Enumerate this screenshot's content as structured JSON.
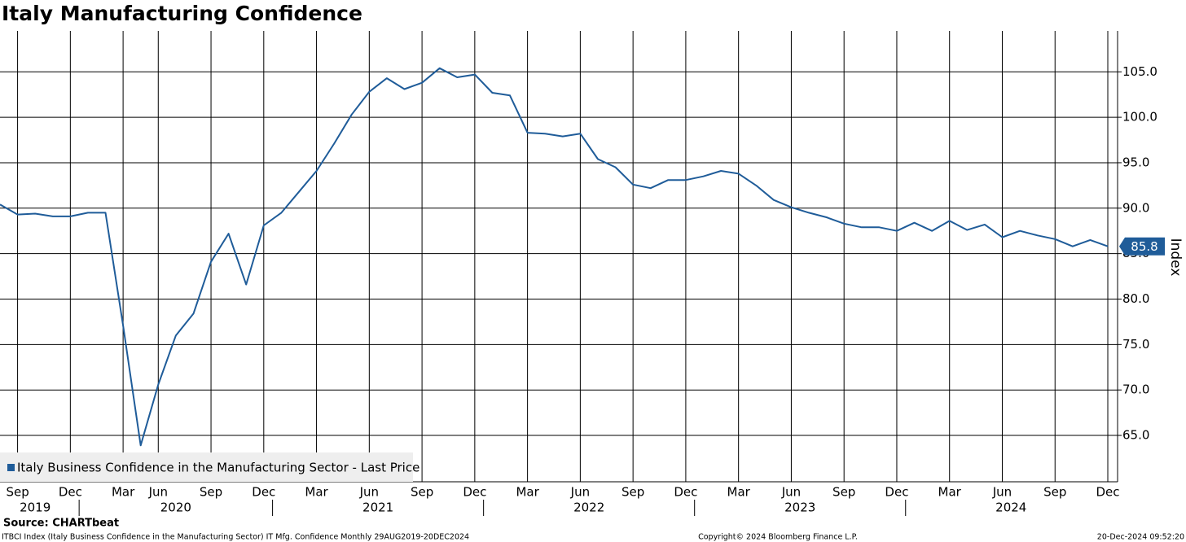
{
  "chart_data": {
    "type": "line",
    "title": "Italy Manufacturing Confidence",
    "y_label": "Index",
    "source": "Source: CHARTbeat",
    "footer_left": "ITBCI Index (Italy Business Confidence in the Manufacturing Sector) IT Mfg. Confidence  Monthly 29AUG2019-20DEC2024",
    "footer_center": "Copyright© 2024 Bloomberg Finance L.P.",
    "footer_right": "20-Dec-2024 09:52:20",
    "x": [
      "2019-08",
      "2019-09",
      "2019-10",
      "2019-11",
      "2019-12",
      "2020-01",
      "2020-02",
      "2020-03",
      "2020-05",
      "2020-06",
      "2020-07",
      "2020-08",
      "2020-09",
      "2020-10",
      "2020-11",
      "2020-12",
      "2021-01",
      "2021-02",
      "2021-03",
      "2021-04",
      "2021-05",
      "2021-06",
      "2021-07",
      "2021-08",
      "2021-09",
      "2021-10",
      "2021-11",
      "2021-12",
      "2022-01",
      "2022-02",
      "2022-03",
      "2022-04",
      "2022-05",
      "2022-06",
      "2022-07",
      "2022-08",
      "2022-09",
      "2022-10",
      "2022-11",
      "2022-12",
      "2023-01",
      "2023-02",
      "2023-03",
      "2023-04",
      "2023-05",
      "2023-06",
      "2023-07",
      "2023-08",
      "2023-09",
      "2023-10",
      "2023-11",
      "2023-12",
      "2024-01",
      "2024-02",
      "2024-03",
      "2024-04",
      "2024-05",
      "2024-06",
      "2024-07",
      "2024-08",
      "2024-09",
      "2024-10",
      "2024-11",
      "2024-12"
    ],
    "series": [
      {
        "name": "Italy Business Confidence in the Manufacturing Sector - Last Price",
        "color": "#1f5c99",
        "values": [
          90.4,
          89.3,
          89.4,
          89.1,
          89.1,
          89.5,
          89.5,
          77.1,
          63.9,
          70.6,
          76.0,
          78.4,
          84.1,
          87.2,
          81.6,
          88.1,
          89.5,
          91.8,
          94.1,
          97.1,
          100.3,
          102.8,
          104.3,
          103.1,
          103.8,
          105.4,
          104.4,
          104.7,
          102.7,
          102.4,
          98.3,
          98.2,
          97.9,
          98.2,
          95.4,
          94.5,
          92.6,
          92.2,
          93.1,
          93.1,
          93.5,
          94.1,
          93.8,
          92.5,
          90.9,
          90.1,
          89.5,
          89.0,
          88.3,
          87.9,
          87.9,
          87.5,
          88.4,
          87.5,
          88.6,
          87.6,
          88.2,
          86.8,
          87.5,
          87.0,
          86.6,
          85.8,
          86.5,
          85.8
        ]
      }
    ],
    "xticks": [
      {
        "value": "2019-09",
        "label": "Sep"
      },
      {
        "value": "2019-12",
        "label": "Dec"
      },
      {
        "value": "2020-03",
        "label": "Mar"
      },
      {
        "value": "2020-06",
        "label": "Jun"
      },
      {
        "value": "2020-09",
        "label": "Sep"
      },
      {
        "value": "2020-12",
        "label": "Dec"
      },
      {
        "value": "2021-03",
        "label": "Mar"
      },
      {
        "value": "2021-06",
        "label": "Jun"
      },
      {
        "value": "2021-09",
        "label": "Sep"
      },
      {
        "value": "2021-12",
        "label": "Dec"
      },
      {
        "value": "2022-03",
        "label": "Mar"
      },
      {
        "value": "2022-06",
        "label": "Jun"
      },
      {
        "value": "2022-09",
        "label": "Sep"
      },
      {
        "value": "2022-12",
        "label": "Dec"
      },
      {
        "value": "2023-03",
        "label": "Mar"
      },
      {
        "value": "2023-06",
        "label": "Jun"
      },
      {
        "value": "2023-09",
        "label": "Sep"
      },
      {
        "value": "2023-12",
        "label": "Dec"
      },
      {
        "value": "2024-03",
        "label": "Mar"
      },
      {
        "value": "2024-06",
        "label": "Jun"
      },
      {
        "value": "2024-09",
        "label": "Sep"
      },
      {
        "value": "2024-12",
        "label": "Dec"
      }
    ],
    "years": [
      "2019",
      "2020",
      "2021",
      "2022",
      "2023",
      "2024"
    ],
    "ylim": [
      59.9,
      109.5
    ],
    "yticks": [
      {
        "value": 65,
        "label": "65.0"
      },
      {
        "value": 70,
        "label": "70.0"
      },
      {
        "value": 75,
        "label": "75.0"
      },
      {
        "value": 80,
        "label": "80.0"
      },
      {
        "value": 85,
        "label": "85.0"
      },
      {
        "value": 90,
        "label": "90.0"
      },
      {
        "value": 95,
        "label": "95.0"
      },
      {
        "value": 100,
        "label": "100.0"
      },
      {
        "value": 105,
        "label": "105.0"
      }
    ],
    "grid": true,
    "legend": "lower left"
  }
}
